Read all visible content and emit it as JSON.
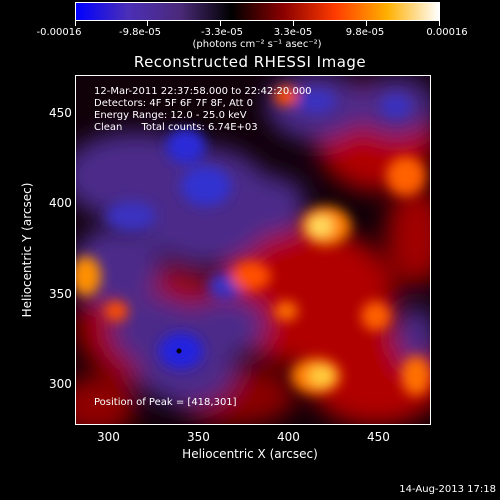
{
  "colorbar": {
    "tick_labels": [
      "-0.00016",
      "-9.8e-05",
      "-3.3e-05",
      "3.3e-05",
      "9.8e-05",
      "0.00016"
    ],
    "units": "(photons cm⁻² s⁻¹ asec⁻²)",
    "colors": [
      "#0000ff",
      "#4b2fb7",
      "#4b2a7a",
      "#000000",
      "#8b0000",
      "#ff3b00",
      "#ffb000",
      "#ffffff"
    ]
  },
  "title": "Reconstructed RHESSI Image",
  "info": {
    "time_range": "12-Mar-2011 22:37:58.000 to 22:42:20.000",
    "detectors": "Detectors: 4F 5F 6F 7F 8F, Att 0",
    "energy": "Energy Range: 12.0 - 25.0 keV",
    "clean": "Clean      Total counts: 6.74E+03",
    "peak": "Position of Peak = [418,301]"
  },
  "axes": {
    "xlabel": "Heliocentric X (arcsec)",
    "ylabel": "Heliocentric Y (arcsec)",
    "x_ticks": [
      "300",
      "350",
      "400",
      "450"
    ],
    "y_ticks": [
      "450",
      "400",
      "350",
      "300"
    ],
    "xlim": [
      283,
      477
    ],
    "ylim": [
      278,
      468
    ]
  },
  "footer": "14-Aug-2013 17:18"
}
